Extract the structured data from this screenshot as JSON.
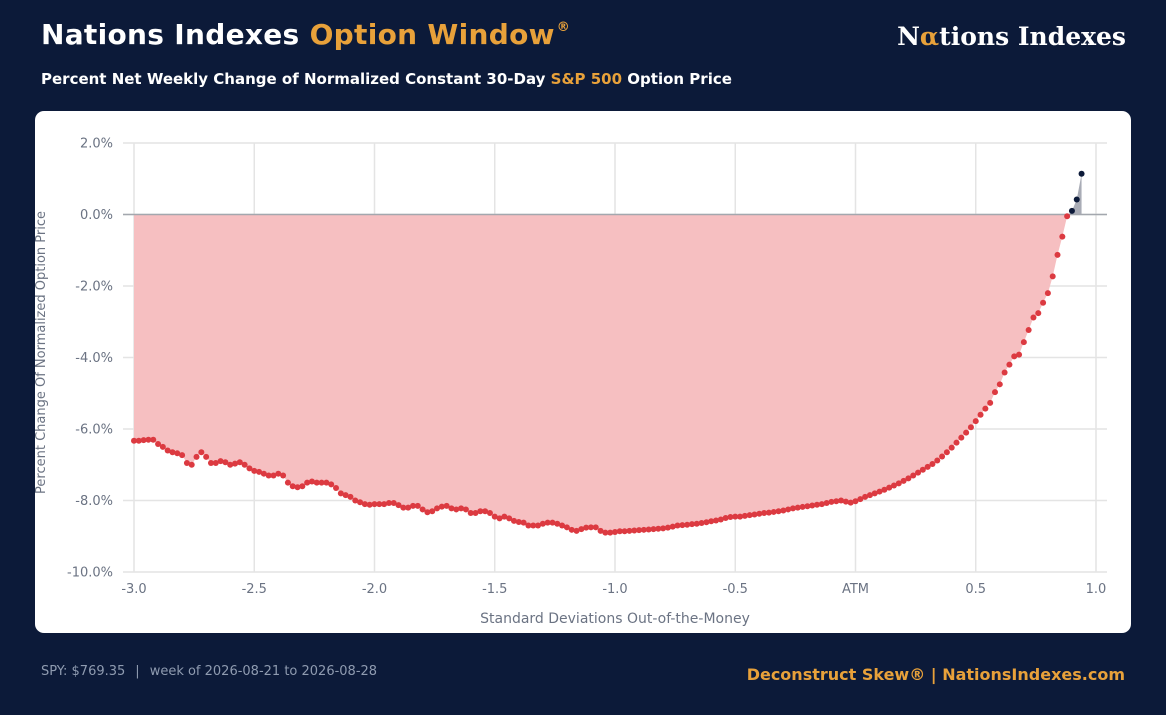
{
  "header": {
    "title_main": "Nations Indexes",
    "title_accent": "Option Window",
    "title_mark": "®",
    "logo_pre": "N",
    "logo_alpha": "α",
    "logo_post": "tions Indexes",
    "subtitle_pre": "Percent Net Weekly Change of Normalized Constant 30-Day",
    "subtitle_accent": "S&P 500",
    "subtitle_post": "Option Price"
  },
  "footer": {
    "spy": "SPY: $769.35",
    "separator": "|",
    "week": "week of 2026-08-21 to 2026-08-28",
    "brand": "Deconstruct Skew® | NationsIndexes.com"
  },
  "colors": {
    "background": "#0c1a39",
    "accent": "#e8a13a",
    "negative_fill": "#f6bfc1",
    "negative_point": "#dc3a41",
    "positive_fill": "#a9acb6",
    "positive_point": "#0c1a39"
  },
  "chart_data": {
    "type": "area",
    "xlabel": "Standard Deviations Out-of-the-Money",
    "ylabel": "Percent Change Of Normalized Option Price",
    "xlim": [
      -3.0,
      1.0
    ],
    "ylim": [
      -10.0,
      2.0
    ],
    "x_ticks": [
      {
        "value": -3.0,
        "label": "-3.0"
      },
      {
        "value": -2.5,
        "label": "-2.5"
      },
      {
        "value": -2.0,
        "label": "-2.0"
      },
      {
        "value": -1.5,
        "label": "-1.5"
      },
      {
        "value": -1.0,
        "label": "-1.0"
      },
      {
        "value": -0.5,
        "label": "-0.5"
      },
      {
        "value": 0.0,
        "label": "ATM"
      },
      {
        "value": 0.5,
        "label": "0.5"
      },
      {
        "value": 1.0,
        "label": "1.0"
      }
    ],
    "y_ticks": [
      {
        "value": 2.0,
        "label": "2.0%"
      },
      {
        "value": 0.0,
        "label": "0.0%"
      },
      {
        "value": -2.0,
        "label": "-2.0%"
      },
      {
        "value": -4.0,
        "label": "-4.0%"
      },
      {
        "value": -6.0,
        "label": "-6.0%"
      },
      {
        "value": -8.0,
        "label": "-8.0%"
      },
      {
        "value": -10.0,
        "label": "-10.0%"
      }
    ],
    "grid": true,
    "x_start": -3.0,
    "x_step": 0.02,
    "values": [
      -6.33,
      -6.33,
      -6.31,
      -6.3,
      -6.3,
      -6.42,
      -6.5,
      -6.6,
      -6.65,
      -6.68,
      -6.73,
      -6.95,
      -7.0,
      -6.78,
      -6.65,
      -6.78,
      -6.95,
      -6.95,
      -6.9,
      -6.93,
      -7.0,
      -6.97,
      -6.93,
      -7.0,
      -7.1,
      -7.17,
      -7.2,
      -7.25,
      -7.3,
      -7.3,
      -7.25,
      -7.3,
      -7.5,
      -7.6,
      -7.63,
      -7.6,
      -7.5,
      -7.47,
      -7.5,
      -7.5,
      -7.5,
      -7.55,
      -7.65,
      -7.8,
      -7.85,
      -7.9,
      -8.0,
      -8.05,
      -8.1,
      -8.12,
      -8.1,
      -8.1,
      -8.1,
      -8.07,
      -8.07,
      -8.13,
      -8.2,
      -8.2,
      -8.15,
      -8.15,
      -8.25,
      -8.33,
      -8.3,
      -8.22,
      -8.17,
      -8.15,
      -8.22,
      -8.25,
      -8.22,
      -8.25,
      -8.35,
      -8.35,
      -8.3,
      -8.3,
      -8.35,
      -8.45,
      -8.5,
      -8.45,
      -8.5,
      -8.57,
      -8.6,
      -8.62,
      -8.7,
      -8.7,
      -8.7,
      -8.65,
      -8.62,
      -8.62,
      -8.65,
      -8.7,
      -8.75,
      -8.82,
      -8.85,
      -8.8,
      -8.76,
      -8.75,
      -8.75,
      -8.85,
      -8.9,
      -8.9,
      -8.88,
      -8.86,
      -8.86,
      -8.85,
      -8.84,
      -8.83,
      -8.82,
      -8.81,
      -8.8,
      -8.79,
      -8.78,
      -8.76,
      -8.73,
      -8.7,
      -8.69,
      -8.68,
      -8.66,
      -8.65,
      -8.63,
      -8.61,
      -8.58,
      -8.56,
      -8.53,
      -8.49,
      -8.46,
      -8.45,
      -8.45,
      -8.43,
      -8.41,
      -8.39,
      -8.37,
      -8.35,
      -8.34,
      -8.32,
      -8.3,
      -8.28,
      -8.25,
      -8.22,
      -8.2,
      -8.18,
      -8.16,
      -8.14,
      -8.12,
      -8.1,
      -8.07,
      -8.04,
      -8.02,
      -8.0,
      -8.03,
      -8.06,
      -8.02,
      -7.96,
      -7.9,
      -7.85,
      -7.8,
      -7.75,
      -7.7,
      -7.64,
      -7.58,
      -7.52,
      -7.45,
      -7.38,
      -7.3,
      -7.22,
      -7.14,
      -7.06,
      -6.98,
      -6.88,
      -6.77,
      -6.65,
      -6.52,
      -6.38,
      -6.24,
      -6.1,
      -5.95,
      -5.78,
      -5.6,
      -5.43,
      -5.27,
      -4.97,
      -4.75,
      -4.42,
      -4.2,
      -3.97,
      -3.92,
      -3.57,
      -3.23,
      -2.88,
      -2.76,
      -2.47,
      -2.2,
      -1.73,
      -1.13,
      -0.62,
      -0.05,
      0.1,
      0.42,
      1.14
    ]
  }
}
